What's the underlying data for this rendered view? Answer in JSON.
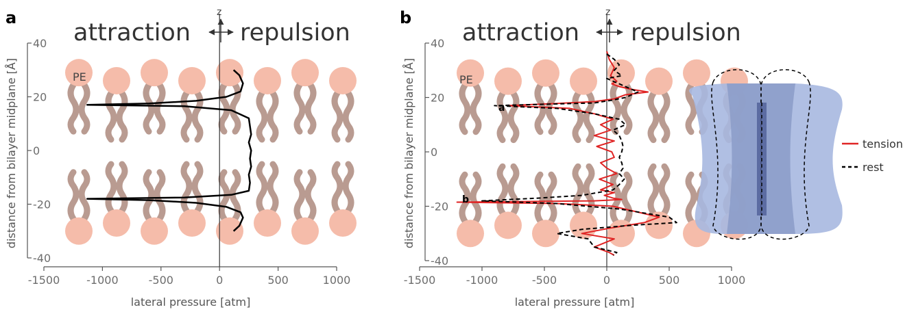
{
  "panel_a": {
    "letter": "a",
    "left_word": "attraction",
    "right_word": "repulsion",
    "axis_arrow_label": "z",
    "lipid_label": "PE",
    "ylabel": "distance from bilayer midplane [Å]",
    "xlabel": "lateral pressure [atm]"
  },
  "panel_b": {
    "letter": "b",
    "left_word": "attraction",
    "right_word": "repulsion",
    "axis_arrow_label": "z",
    "lipid_label": "PE",
    "ylabel": "distance from bilayer midplane [Å]",
    "xlabel": "lateral pressure [atm]",
    "annotations": [
      "a",
      "b"
    ],
    "legend": [
      "tension",
      "rest"
    ]
  },
  "colors": {
    "lipid_head": "#f5bcaa",
    "lipid_tail": "#b99b91",
    "tension": "#e02424",
    "rest": "#000000",
    "channel": "#a7b8e0",
    "axis": "#555555"
  },
  "chart_data": [
    {
      "type": "line",
      "xlabel": "lateral pressure [atm]",
      "ylabel": "distance from bilayer midplane [Å]",
      "xlim": [
        -1500,
        1000
      ],
      "ylim": [
        -40,
        40
      ],
      "xticks": [
        -1500,
        -1000,
        -500,
        0,
        500,
        1000
      ],
      "yticks": [
        -40,
        -20,
        0,
        20,
        40
      ],
      "xtick_labels": [
        "-1500",
        "-1000",
        "-500",
        "0",
        "500",
        "1000"
      ],
      "ytick_labels": [
        "-40",
        "-20",
        "0",
        "20",
        "40"
      ],
      "series": [
        {
          "style": "solid",
          "color": "#000000",
          "x": [
            120,
            170,
            200,
            180,
            60,
            -200,
            -600,
            -1130,
            -300,
            100,
            250,
            260,
            270,
            250,
            270,
            260,
            270,
            250,
            260,
            250,
            100,
            -300,
            -1130,
            -600,
            -200,
            60,
            180,
            200,
            170,
            120
          ],
          "y": [
            30,
            28,
            25,
            22,
            20,
            18.5,
            17.5,
            17,
            16.5,
            15,
            12,
            9,
            6,
            3,
            0,
            -3,
            -6,
            -9,
            -12,
            -15,
            -16.5,
            -17.5,
            -18,
            -18.5,
            -19.5,
            -21,
            -23,
            -25,
            -28,
            -30
          ]
        }
      ]
    },
    {
      "type": "line",
      "xlabel": "lateral pressure [atm]",
      "ylabel": "distance from bilayer midplane [Å]",
      "xlim": [
        -1500,
        1000
      ],
      "ylim": [
        -40,
        40
      ],
      "xticks": [
        -1500,
        -1000,
        -500,
        0,
        500,
        1000
      ],
      "yticks": [
        -40,
        -20,
        0,
        20,
        40
      ],
      "xtick_labels": [
        "-1500",
        "-1000",
        "-500",
        "0",
        "500",
        "1000"
      ],
      "ytick_labels": [
        "-40",
        "-20",
        "0",
        "20",
        "40"
      ],
      "series": [
        {
          "name": "tension",
          "style": "solid",
          "color": "#e02424",
          "x": [
            0,
            20,
            60,
            30,
            80,
            40,
            100,
            200,
            330,
            150,
            60,
            -100,
            -400,
            -800,
            -300,
            -100,
            50,
            -50,
            30,
            -100,
            60,
            -80,
            40,
            60,
            -50,
            0,
            80,
            -60,
            50,
            -50,
            60,
            -20,
            50,
            120,
            -100,
            -500,
            -1200,
            -400,
            50,
            420,
            300,
            30,
            -200,
            60,
            -100,
            20,
            60
          ],
          "y": [
            37,
            34,
            31,
            28,
            26,
            25,
            24,
            23,
            22,
            21,
            19.5,
            18.5,
            17.8,
            17,
            16,
            14,
            12,
            10,
            8,
            6,
            4,
            2,
            0,
            -2,
            -4,
            -6,
            -8,
            -10,
            -12,
            -14,
            -15,
            -16,
            -17,
            -17.5,
            -18,
            -18.2,
            -18.5,
            -19,
            -20,
            -24,
            -26,
            -28,
            -30,
            -32,
            -35,
            -37,
            -38
          ]
        },
        {
          "name": "rest",
          "style": "dashed",
          "color": "#000000",
          "x": [
            0,
            60,
            100,
            60,
            120,
            0,
            100,
            200,
            250,
            150,
            40,
            -100,
            -500,
            -900,
            -400,
            -100,
            100,
            150,
            50,
            100,
            120,
            130,
            120,
            100,
            120,
            130,
            100,
            140,
            100,
            50,
            -200,
            -550,
            -1000,
            -400,
            100,
            500,
            560,
            200,
            -200,
            -400,
            -150,
            -100,
            80,
            50
          ],
          "y": [
            36,
            34,
            32,
            30,
            28,
            27,
            25,
            23,
            22,
            20,
            19,
            18,
            17.5,
            17,
            16,
            14,
            12,
            10,
            8,
            6,
            4,
            2,
            0,
            -2,
            -4,
            -6,
            -8,
            -10,
            -12,
            -14,
            -16,
            -17,
            -18,
            -19,
            -21,
            -24,
            -26,
            -27,
            -28.5,
            -30,
            -32,
            -35,
            -37,
            -38
          ]
        }
      ]
    }
  ]
}
